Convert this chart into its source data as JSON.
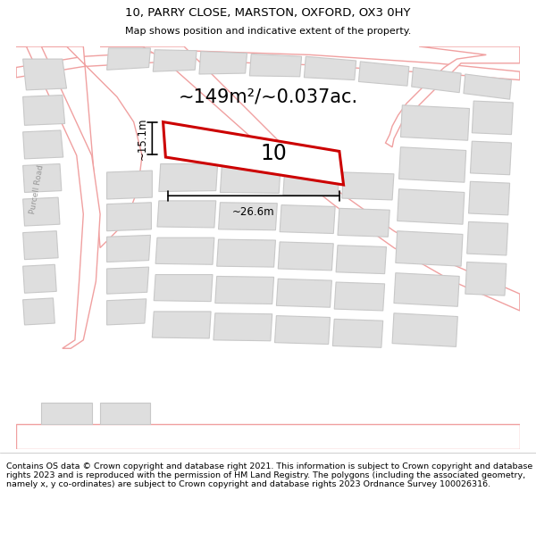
{
  "title_line1": "10, PARRY CLOSE, MARSTON, OXFORD, OX3 0HY",
  "title_line2": "Map shows position and indicative extent of the property.",
  "area_text": "~149m²/~0.037ac.",
  "label_number": "10",
  "dim_width": "~26.6m",
  "dim_height": "~15.1m",
  "road_label": "Purcell Road",
  "footer_text": "Contains OS data © Crown copyright and database right 2021. This information is subject to Crown copyright and database rights 2023 and is reproduced with the permission of HM Land Registry. The polygons (including the associated geometry, namely x, y co-ordinates) are subject to Crown copyright and database rights 2023 Ordnance Survey 100026316.",
  "bg_color": "#ffffff",
  "map_bg": "#f7f7f7",
  "building_fill": "#dedede",
  "building_edge": "#c8c8c8",
  "road_fill": "#ffffff",
  "road_edge": "#f0a0a0",
  "highlight_edge": "#cc0000",
  "highlight_fill": "#ffffff",
  "dim_line_color": "#000000",
  "text_color": "#000000",
  "footer_fontsize": 6.8,
  "title_fontsize": 9.5,
  "subtitle_fontsize": 8.0,
  "area_fontsize": 15,
  "label_fontsize": 17,
  "road_label_fontsize": 6.5,
  "dim_fontsize": 8.5
}
